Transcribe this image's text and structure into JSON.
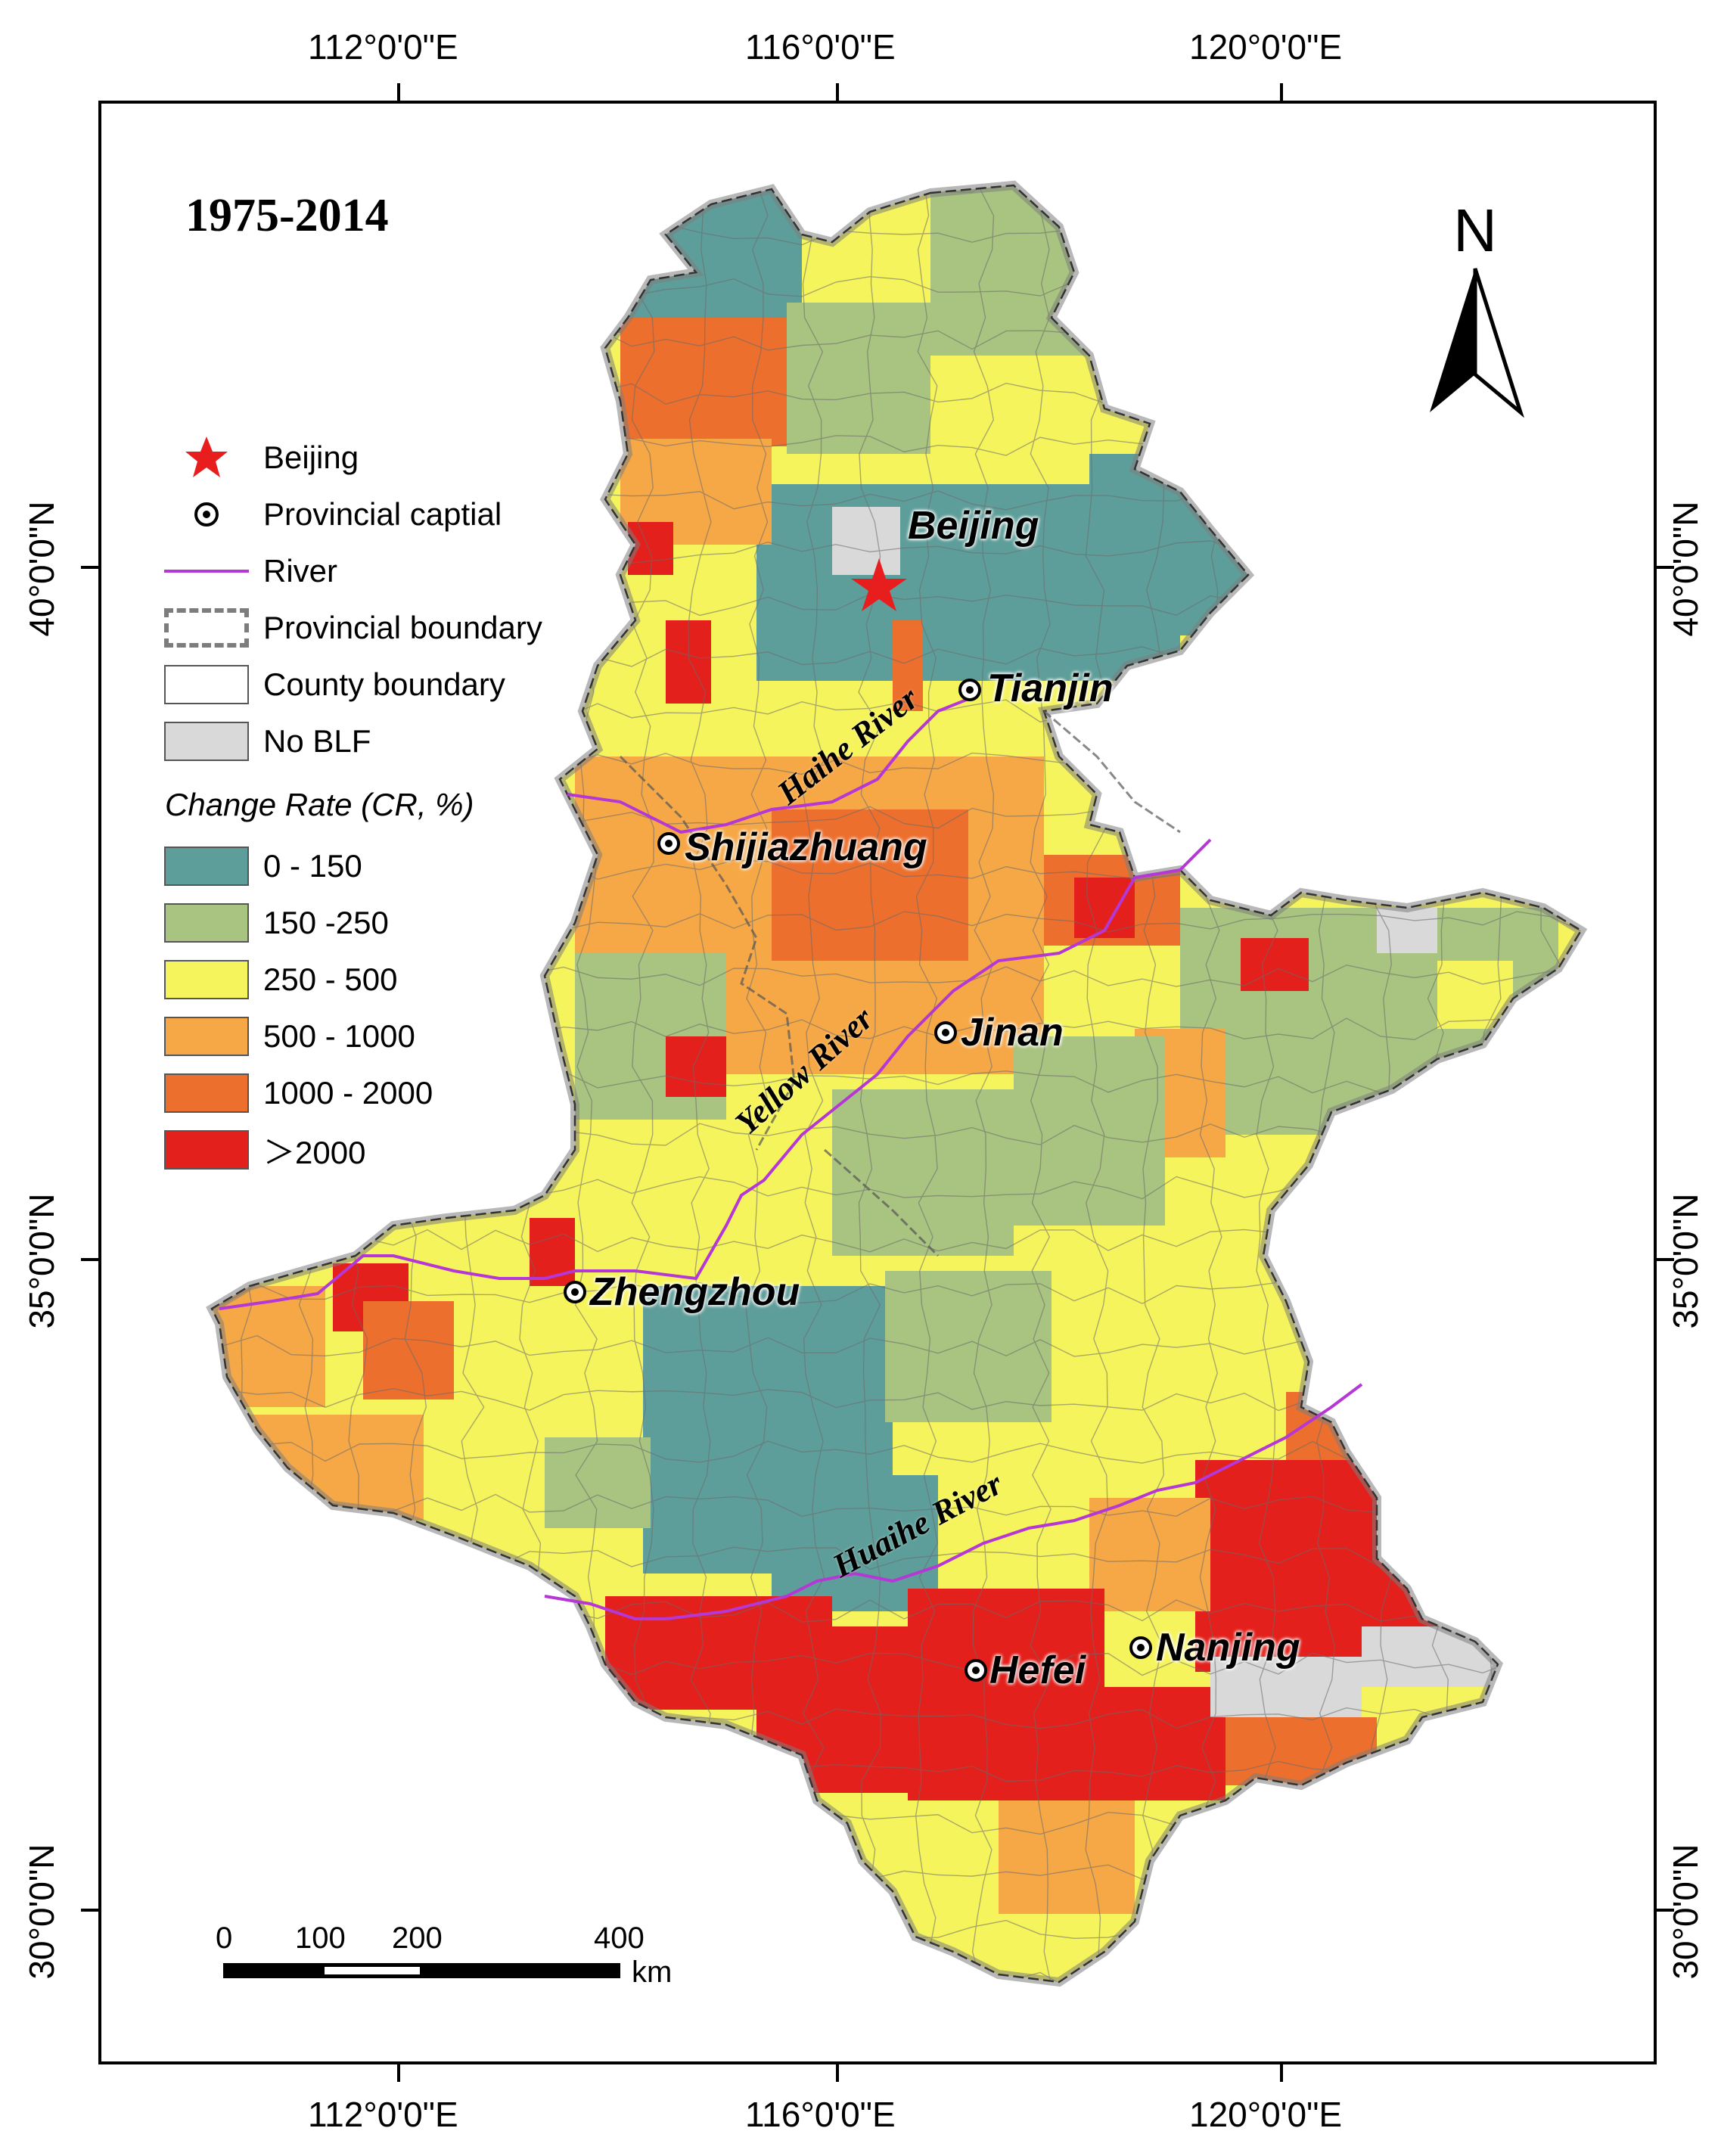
{
  "period": "1975-2014",
  "axes": {
    "top_labels": [
      "112°0'0\"E",
      "116°0'0\"E",
      "120°0'0\"E"
    ],
    "bottom_labels": [
      "112°0'0\"E",
      "116°0'0\"E",
      "120°0'0\"E"
    ],
    "left_labels": [
      "40°0'0\"N",
      "35°0'0\"N",
      "30°0'0\"N"
    ],
    "right_labels": [
      "40°0'0\"N",
      "35°0'0\"N",
      "30°0'0\"N"
    ]
  },
  "legend": {
    "beijing": "Beijing",
    "capital": "Provincial captial",
    "river": "River",
    "provincial_boundary": "Provincial boundary",
    "county_boundary": "County boundary",
    "no_blf": "No BLF",
    "change_rate_title": "Change Rate (CR, %)",
    "classes": [
      {
        "label": "0 - 150",
        "color": "#5e9e9a"
      },
      {
        "label": "150 -250",
        "color": "#a9c480"
      },
      {
        "label": "250 - 500",
        "color": "#f6f45c"
      },
      {
        "label": "500 - 1000",
        "color": "#f6a847"
      },
      {
        "label": "1000 - 2000",
        "color": "#ec6f2d"
      },
      {
        "label": "＞2000",
        "color": "#e3201b"
      }
    ],
    "no_blf_color": "#d9d9d9",
    "river_color": "#b537d6",
    "star_color": "#e81d1d"
  },
  "cities": {
    "beijing": "Beijing",
    "tianjin": "Tianjin",
    "shijiazhuang": "Shijiazhuang",
    "jinan": "Jinan",
    "zhengzhou": "Zhengzhou",
    "hefei": "Hefei",
    "nanjing": "Nanjing"
  },
  "rivers": {
    "haihe": "Haihe River",
    "yellow": "Yellow River",
    "huaihe": "Huaihe River"
  },
  "north_arrow": "N",
  "scale_bar": {
    "labels": [
      "0",
      "100",
      "200",
      "400"
    ],
    "unit": "km"
  }
}
